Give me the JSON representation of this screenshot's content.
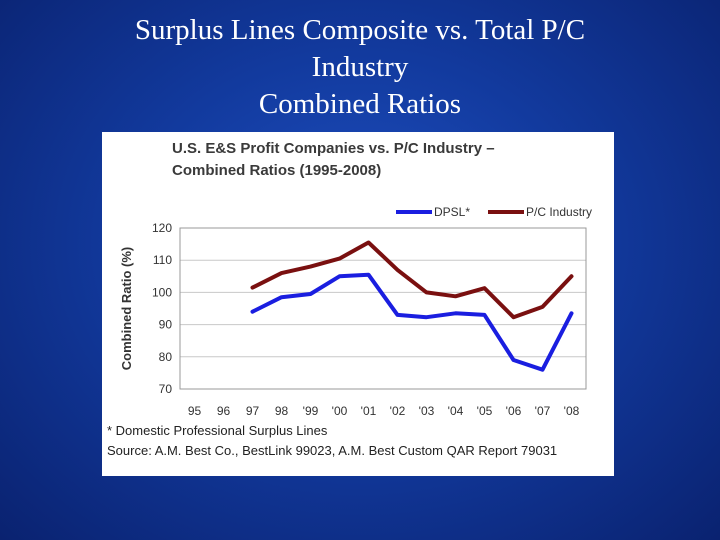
{
  "slide": {
    "title_lines": [
      "Surplus Lines Composite vs. Total P/C",
      "Industry",
      "Combined Ratios"
    ]
  },
  "chart_data": {
    "type": "line",
    "title": "U.S. E&S Profit Companies vs. P/C Industry – Combined Ratios (1995-2008)",
    "title_lines": [
      "U.S. E&S Profit Companies vs. P/C Industry –",
      "Combined Ratios (1995-2008)"
    ],
    "xlabel": "",
    "ylabel": "Combined Ratio (%)",
    "categories": [
      "95",
      "96",
      "97",
      "98",
      "'99",
      "'00",
      "'01",
      "'02",
      "'03",
      "'04",
      "'05",
      "'06",
      "'07",
      "'08"
    ],
    "ylim": [
      70,
      120
    ],
    "yticks": [
      70,
      80,
      90,
      100,
      110,
      120
    ],
    "grid": true,
    "legend_position": "top-right",
    "series": [
      {
        "name": "DPSL*",
        "color": "#1a1ee0",
        "values": [
          null,
          null,
          94,
          98.5,
          99.5,
          105,
          105.5,
          93,
          92.3,
          93.5,
          93,
          79,
          76,
          93.5
        ]
      },
      {
        "name": "P/C Industry",
        "color": "#7a1010",
        "values": [
          null,
          null,
          101.5,
          106,
          108,
          110.5,
          115.5,
          107,
          100,
          98.8,
          101.3,
          92.3,
          95.5,
          105
        ]
      }
    ],
    "footnotes": [
      "* Domestic Professional Surplus Lines",
      "Source: A.M. Best Co., BestLink 99023, A.M. Best Custom QAR Report 79031"
    ]
  }
}
